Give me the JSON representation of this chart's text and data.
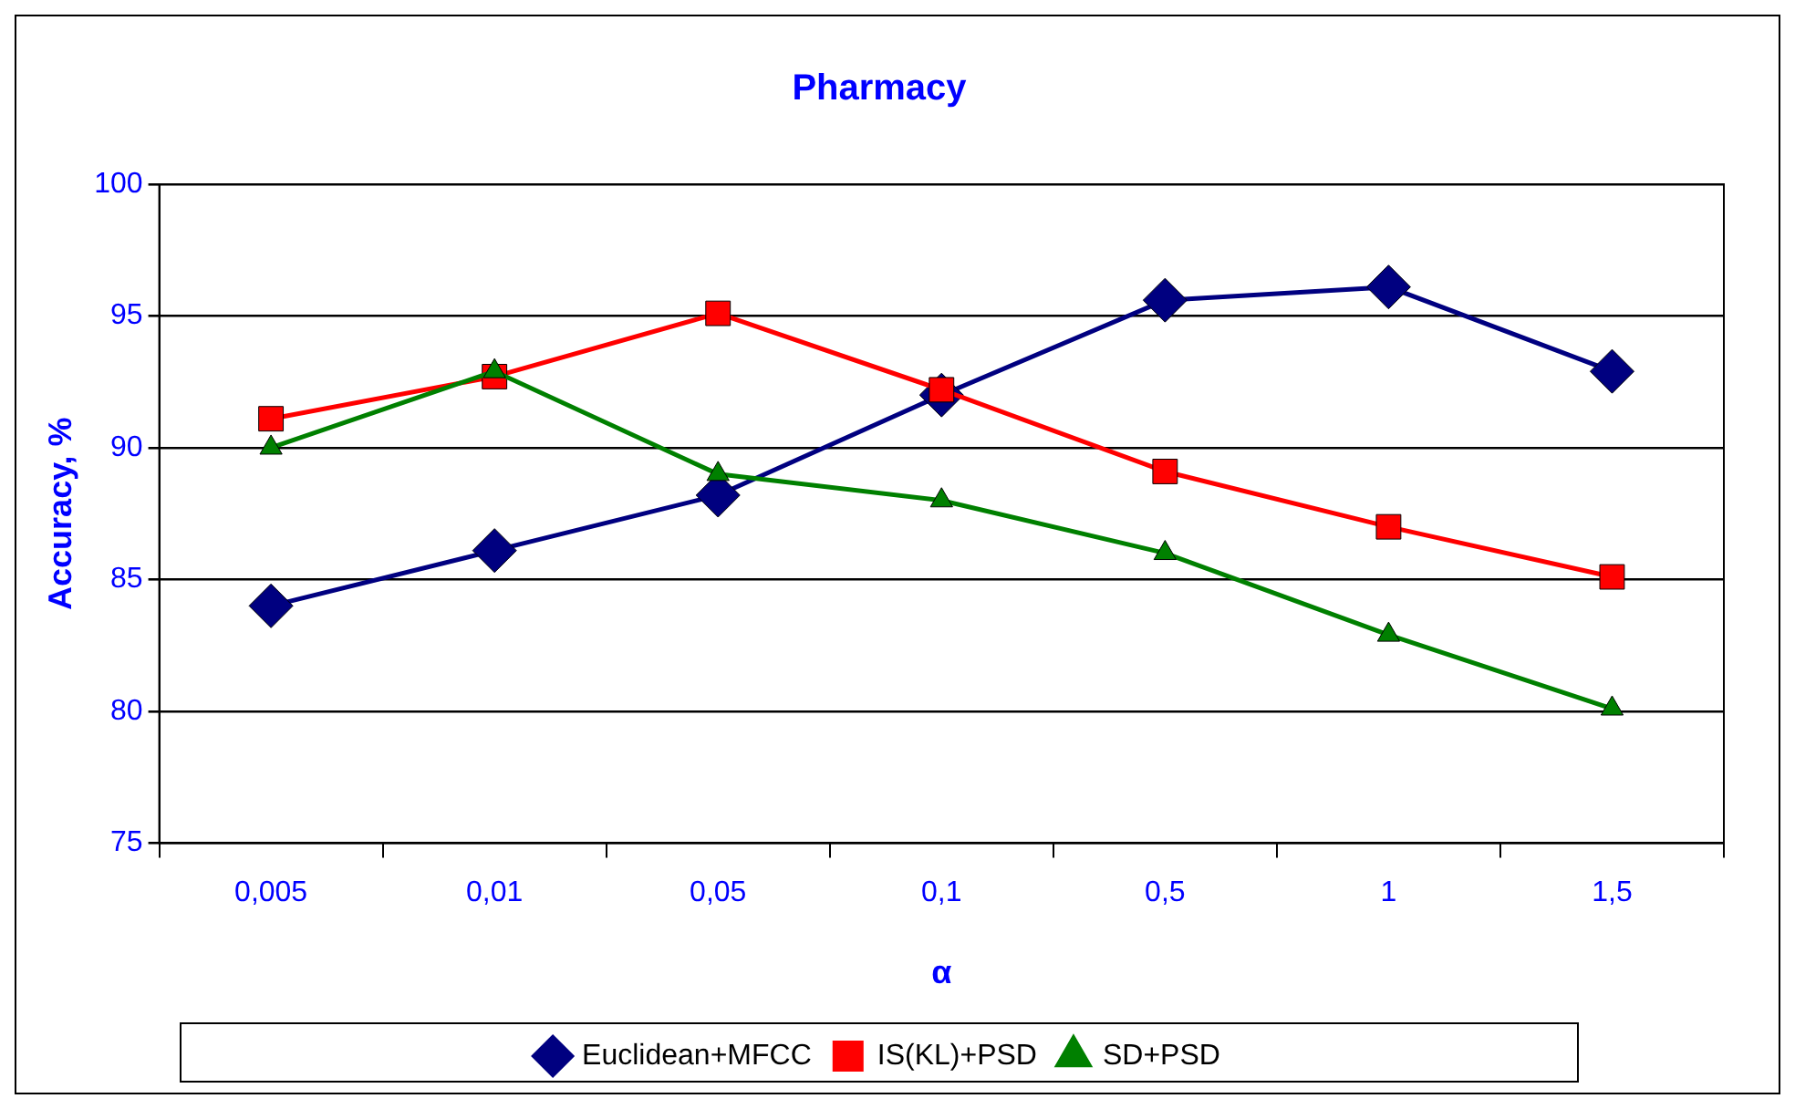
{
  "chart_data": {
    "type": "line",
    "title": "Pharmacy",
    "xlabel": "α",
    "ylabel": "Accuracy, %",
    "categories": [
      "0,005",
      "0,01",
      "0,05",
      "0,1",
      "0,5",
      "1",
      "1,5"
    ],
    "series": [
      {
        "name": "Euclidean+MFCC",
        "color": "#000080",
        "marker": "diamond",
        "values": [
          84.0,
          86.1,
          88.2,
          92.0,
          95.6,
          96.1,
          92.9
        ]
      },
      {
        "name": "IS(KL)+PSD",
        "color": "#ff0000",
        "marker": "square",
        "values": [
          91.1,
          92.7,
          95.1,
          92.2,
          89.1,
          87.0,
          85.1
        ]
      },
      {
        "name": "SD+PSD",
        "color": "#008000",
        "marker": "triangle",
        "values": [
          90.0,
          92.9,
          89.0,
          88.0,
          86.0,
          82.9,
          80.1
        ]
      }
    ],
    "ylim": [
      75,
      100
    ],
    "yticks": [
      75,
      80,
      85,
      90,
      95,
      100
    ],
    "grid": "y",
    "legend": "bottom",
    "line_style": "solid"
  }
}
